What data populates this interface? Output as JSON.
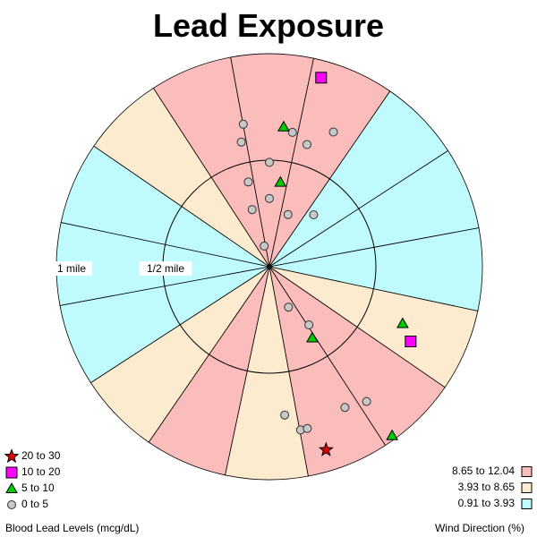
{
  "chart_data": {
    "type": "polar-scatter",
    "title": "Lead Exposure",
    "ring_labels": [
      "1 mile",
      "1/2 mile"
    ],
    "sector_count": 16,
    "sector_width_deg": 22.5,
    "sector_classes": [
      "high",
      "high",
      "low",
      "low",
      "low",
      "mid",
      "high",
      "high",
      "mid",
      "high",
      "mid",
      "low",
      "low",
      "low",
      "mid",
      "high"
    ],
    "wind_direction_legend": {
      "title": "Wind Direction (%)",
      "classes": [
        {
          "key": "high",
          "label": "8.65 to 12.04",
          "color": "#fbbcbc"
        },
        {
          "key": "mid",
          "label": "3.93 to 8.65",
          "color": "#fdebcf"
        },
        {
          "key": "low",
          "label": "0.91 to 3.93",
          "color": "#bffafc"
        }
      ]
    },
    "blood_lead_legend": {
      "title": "Blood Lead Levels (mcg/dL)",
      "classes": [
        {
          "key": "20-30",
          "label": "20 to 30",
          "marker": "star",
          "color": "#dd0000"
        },
        {
          "key": "10-20",
          "label": "10 to 20",
          "marker": "square",
          "color": "#ff00ff"
        },
        {
          "key": "5-10",
          "label": "5 to 10",
          "marker": "triangle",
          "color": "#00cc00"
        },
        {
          "key": "0-5",
          "label": "0 to 5",
          "marker": "circle",
          "color": "#c8c8c8"
        }
      ]
    },
    "points": [
      {
        "bearing_deg": 15.3,
        "distance_mile": 0.92,
        "class": "10-20"
      },
      {
        "bearing_deg": 5.8,
        "distance_mile": 0.66,
        "class": "5-10"
      },
      {
        "bearing_deg": 7.4,
        "distance_mile": 0.4,
        "class": "5-10"
      },
      {
        "bearing_deg": 117.9,
        "distance_mile": 0.75,
        "class": "10-20"
      },
      {
        "bearing_deg": 113.1,
        "distance_mile": 0.68,
        "class": "5-10"
      },
      {
        "bearing_deg": 148.9,
        "distance_mile": 0.39,
        "class": "5-10"
      },
      {
        "bearing_deg": 144.0,
        "distance_mile": 0.98,
        "class": "5-10"
      },
      {
        "bearing_deg": 162.8,
        "distance_mile": 0.9,
        "class": "20-30"
      },
      {
        "bearing_deg": 349.6,
        "distance_mile": 0.68,
        "class": "0-5"
      },
      {
        "bearing_deg": 347.3,
        "distance_mile": 0.6,
        "class": "0-5"
      },
      {
        "bearing_deg": 9.7,
        "distance_mile": 0.64,
        "class": "0-5"
      },
      {
        "bearing_deg": 25.4,
        "distance_mile": 0.7,
        "class": "0-5"
      },
      {
        "bearing_deg": 17.1,
        "distance_mile": 0.6,
        "class": "0-5"
      },
      {
        "bearing_deg": 0.0,
        "distance_mile": 0.49,
        "class": "0-5"
      },
      {
        "bearing_deg": 346.0,
        "distance_mile": 0.41,
        "class": "0-5"
      },
      {
        "bearing_deg": 343.2,
        "distance_mile": 0.28,
        "class": "0-5"
      },
      {
        "bearing_deg": 0.0,
        "distance_mile": 0.32,
        "class": "0-5"
      },
      {
        "bearing_deg": 40.4,
        "distance_mile": 0.32,
        "class": "0-5"
      },
      {
        "bearing_deg": 19.6,
        "distance_mile": 0.26,
        "class": "0-5"
      },
      {
        "bearing_deg": 346.0,
        "distance_mile": 0.1,
        "class": "0-5"
      },
      {
        "bearing_deg": 154.8,
        "distance_mile": 0.21,
        "class": "0-5"
      },
      {
        "bearing_deg": 145.8,
        "distance_mile": 0.33,
        "class": "0-5"
      },
      {
        "bearing_deg": 151.8,
        "distance_mile": 0.75,
        "class": "0-5"
      },
      {
        "bearing_deg": 144.2,
        "distance_mile": 0.78,
        "class": "0-5"
      },
      {
        "bearing_deg": 174.1,
        "distance_mile": 0.7,
        "class": "0-5"
      },
      {
        "bearing_deg": 169.2,
        "distance_mile": 0.78,
        "class": "0-5"
      },
      {
        "bearing_deg": 166.8,
        "distance_mile": 0.78,
        "class": "0-5"
      }
    ]
  }
}
